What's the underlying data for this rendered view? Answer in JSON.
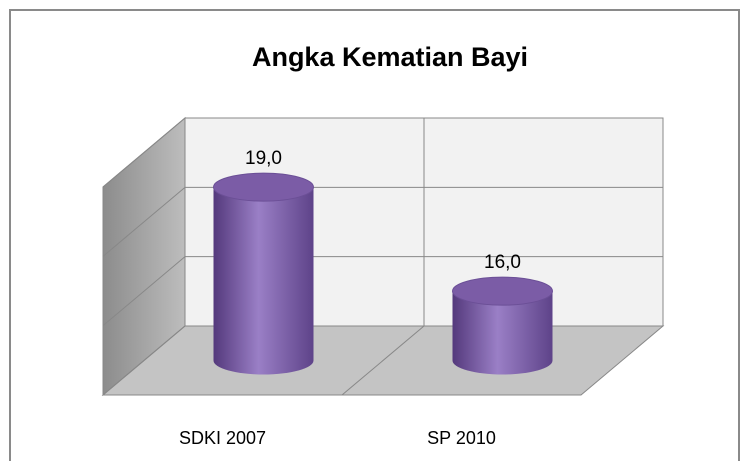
{
  "chart_data": {
    "type": "cylinder",
    "title": "Angka Kematian Bayi",
    "categories": [
      "SDKI 2007",
      "SP 2010"
    ],
    "values": [
      19,
      16
    ],
    "value_labels": [
      "19,0",
      "16,0"
    ],
    "color": "#7b5ca6",
    "ylim": [
      14,
      20
    ],
    "yticks": [
      14,
      16,
      18,
      20
    ],
    "grid": true
  }
}
